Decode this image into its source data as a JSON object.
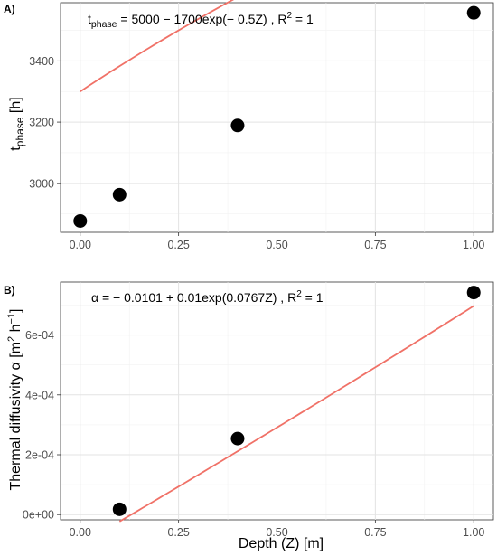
{
  "chart_data": [
    {
      "panel": "A)",
      "type": "scatter",
      "x": [
        0.0,
        0.1,
        0.4,
        1.0
      ],
      "y": [
        2877,
        2963,
        3189,
        3557
      ],
      "fit": {
        "a": 5000,
        "b": -1700,
        "k": -0.5,
        "form": "a + b*exp(k*x)"
      },
      "equation": {
        "lhs_base": "t",
        "lhs_sub": "phase",
        "rhs": " = 5000 − 1700exp(− 0.5Z) , R",
        "r2_sup": "2",
        "r2_val": " = 1"
      },
      "ylabel": {
        "base": "t",
        "sub": "phase",
        "rest": " [h]"
      },
      "xlim": [
        -0.05,
        1.05
      ],
      "ylim": [
        2840,
        3590
      ],
      "xticks": [
        0,
        0.25,
        0.5,
        0.75,
        1.0
      ],
      "xtick_labels": [
        "0.00",
        "0.25",
        "0.50",
        "0.75",
        "1.00"
      ],
      "yticks": [
        3000,
        3200,
        3400
      ],
      "ytick_labels": [
        "3000",
        "3200",
        "3400"
      ],
      "grid": true,
      "point_color": "#000000",
      "line_color": "#F07167"
    },
    {
      "panel": "B)",
      "type": "scatter",
      "x": [
        0.1,
        0.4,
        1.0
      ],
      "y": [
        1.78e-05,
        0.000254,
        0.000742
      ],
      "fit": {
        "a": -0.0101,
        "b": 0.01,
        "k": 0.0767,
        "form": "a + b*exp(k*x)"
      },
      "equation": {
        "lhs_base": "α = − 0.0101 + 0.01exp(0.0767Z) , R",
        "r2_sup": "2",
        "r2_val": " = 1"
      },
      "ylabel": {
        "base": "Thermal diffusivity  α  [m",
        "sup1": "2",
        "mid": " h",
        "sup2": "−1",
        "end": "]"
      },
      "xlabel": "Depth (Z) [m]",
      "xlim": [
        -0.05,
        1.05
      ],
      "ylim": [
        -1.75e-05,
        0.000777
      ],
      "xticks": [
        0,
        0.25,
        0.5,
        0.75,
        1.0
      ],
      "xtick_labels": [
        "0.00",
        "0.25",
        "0.50",
        "0.75",
        "1.00"
      ],
      "yticks": [
        0,
        0.0002,
        0.0004,
        0.0006
      ],
      "ytick_labels": [
        "0e+00",
        "2e-04",
        "4e-04",
        "6e-04"
      ],
      "grid": true,
      "point_color": "#000000",
      "line_color": "#F07167"
    }
  ]
}
